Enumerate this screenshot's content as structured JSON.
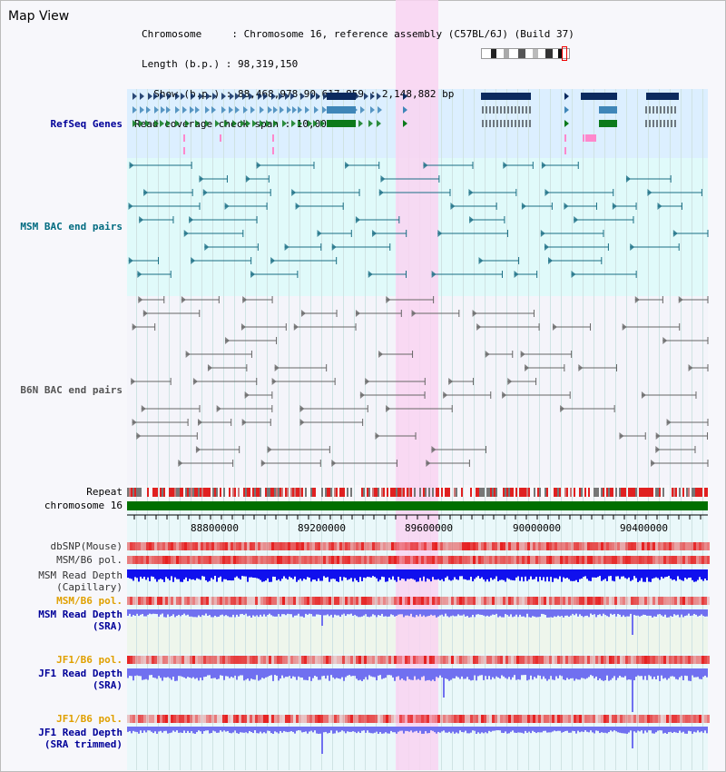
{
  "view": {
    "title": "Map View"
  },
  "info": {
    "chromosome": "Chromosome     : Chromosome 16, reference assembly (C57BL/6J) (Build 37)",
    "length": "Length (b.p.) : 98,319,150",
    "show": "  Show (b.p.) : 88,468,978-90,617,859 : 2,148,882 bp",
    "coverage": "Read coverage check span : 10,000"
  },
  "tracks": {
    "refseq": "RefSeq Genes",
    "msm_bac": "MSM BAC end pairs",
    "b6n_bac": "B6N BAC end pairs",
    "repeat": "Repeat",
    "chromosome": "chromosome 16",
    "dbsnp": "dbSNP(Mouse)",
    "msm_b6_pol_1": "MSM/B6 pol.",
    "msm_read_depth_cap_1": "MSM Read Depth",
    "msm_read_depth_cap_2": "(Capillary)",
    "msm_b6_pol_2": "MSM/B6 pol.",
    "msm_read_depth_sra_1": "MSM Read Depth",
    "msm_read_depth_sra_2": "(SRA)",
    "jf1_b6_pol_1": "JF1/B6 pol.",
    "jf1_read_depth_sra_1": "JF1 Read Depth",
    "jf1_read_depth_sra_2": "(SRA)",
    "jf1_b6_pol_2": "JF1/B6 pol.",
    "jf1_read_depth_trim_1": "JF1 Read Depth",
    "jf1_read_depth_trim_2": "(SRA trimmed)"
  },
  "axis": {
    "ticks": [
      "88800000",
      "89200000",
      "89600000",
      "90000000",
      "90400000"
    ]
  },
  "colors": {
    "refseq_bg": "#dcefff",
    "msm_bg": "#e0fafa",
    "b6n_bg": "#f4f4fa",
    "highlight": "#f9d4f1",
    "gene_dark": "#0b2a5e",
    "gene_mid": "#3f86b8",
    "gene_green": "#0c7a1b",
    "msm_line": "#1a6e84",
    "b6n_line": "#666666",
    "repeat_red": "#e02020",
    "chrom_green": "#007000",
    "depth_blue": "#1010ee",
    "depth_light": "#7070f0",
    "label_navy": "#000099",
    "label_teal": "#006b80",
    "label_orange": "#e0a000"
  }
}
